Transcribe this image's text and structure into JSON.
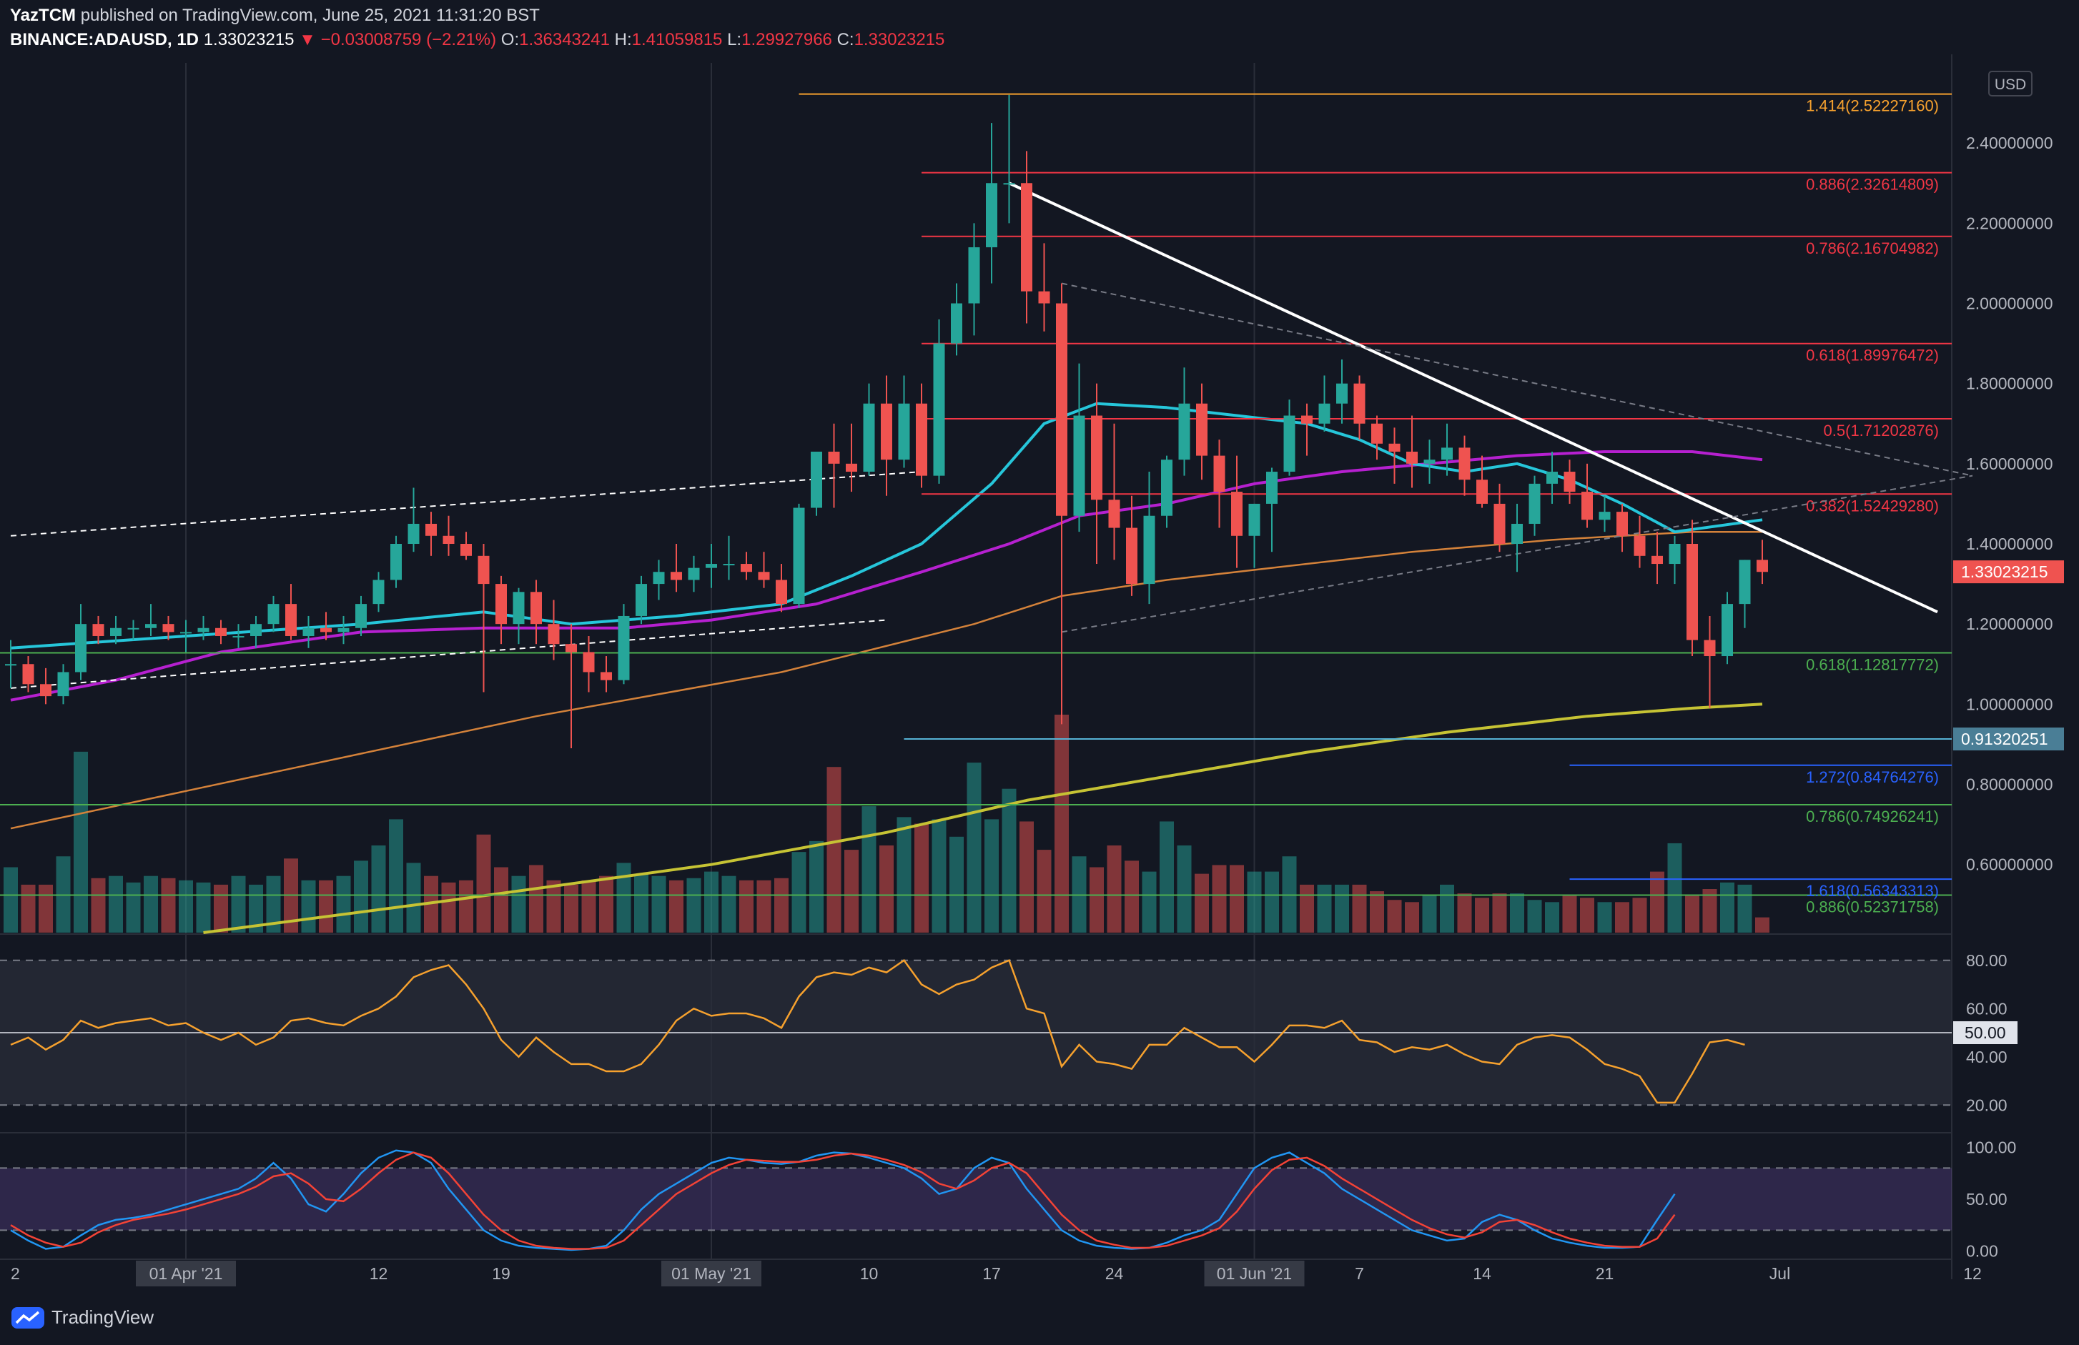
{
  "header": {
    "author": "YazTCM",
    "published_text": "published on TradingView.com, June 25, 2021 11:31:20 BST",
    "symbol": "BINANCE:ADAUSD, 1D",
    "last": "1.33023215",
    "change": "−0.03008759 (−2.21%)",
    "o_label": "O:",
    "o_value": "1.36343241",
    "h_label": "H:",
    "h_value": "1.41059815",
    "l_label": "L:",
    "l_value": "1.29927966",
    "c_label": "C:",
    "c_value": "1.33023215"
  },
  "footer": {
    "brand": "TradingView"
  },
  "colors": {
    "bg": "#131722",
    "up": "#26a69a",
    "down": "#ef5350",
    "ema20": "#26c6da",
    "ema50": "#b620d0",
    "ema100": "#d4823a",
    "ema200": "#c6c334",
    "fib_red": "#f23645",
    "fib_green": "#4caf50",
    "fib_blue": "#2962ff",
    "rsi": "#f6a12e",
    "stoch_k": "#2196f3",
    "stoch_d": "#f44336"
  },
  "chart_data": {
    "type": "candlestick",
    "title": "BINANCE:ADAUSD, 1D",
    "currency": "USD",
    "ylim": [
      0.43,
      2.6
    ],
    "y_ticks": [
      "2.40000000",
      "2.20000000",
      "2.00000000",
      "1.80000000",
      "1.60000000",
      "1.40000000",
      "1.20000000",
      "1.00000000",
      "0.80000000",
      "0.60000000"
    ],
    "x_ticks": [
      {
        "label": "2",
        "i": 0
      },
      {
        "label": "01 Apr '21",
        "i": 10,
        "boxed": true
      },
      {
        "label": "12",
        "i": 21
      },
      {
        "label": "19",
        "i": 28
      },
      {
        "label": "01 May '21",
        "i": 40,
        "boxed": true
      },
      {
        "label": "10",
        "i": 49
      },
      {
        "label": "17",
        "i": 56
      },
      {
        "label": "24",
        "i": 63
      },
      {
        "label": "01 Jun '21",
        "i": 71,
        "boxed": true
      },
      {
        "label": "7",
        "i": 77
      },
      {
        "label": "14",
        "i": 84
      },
      {
        "label": "21",
        "i": 91
      },
      {
        "label": "Jul",
        "i": 101
      },
      {
        "label": "12",
        "i": 112
      }
    ],
    "candles": [
      [
        1.1,
        1.16,
        1.04,
        1.1
      ],
      [
        1.1,
        1.12,
        1.03,
        1.05
      ],
      [
        1.05,
        1.09,
        1.0,
        1.02
      ],
      [
        1.02,
        1.1,
        1.0,
        1.08
      ],
      [
        1.08,
        1.25,
        1.06,
        1.2
      ],
      [
        1.2,
        1.22,
        1.15,
        1.17
      ],
      [
        1.17,
        1.22,
        1.15,
        1.19
      ],
      [
        1.19,
        1.21,
        1.16,
        1.19
      ],
      [
        1.19,
        1.25,
        1.17,
        1.2
      ],
      [
        1.2,
        1.22,
        1.16,
        1.18
      ],
      [
        1.18,
        1.21,
        1.13,
        1.18
      ],
      [
        1.18,
        1.22,
        1.16,
        1.19
      ],
      [
        1.19,
        1.21,
        1.15,
        1.17
      ],
      [
        1.17,
        1.2,
        1.14,
        1.17
      ],
      [
        1.17,
        1.22,
        1.14,
        1.2
      ],
      [
        1.2,
        1.27,
        1.18,
        1.25
      ],
      [
        1.25,
        1.3,
        1.16,
        1.17
      ],
      [
        1.17,
        1.22,
        1.14,
        1.19
      ],
      [
        1.19,
        1.23,
        1.16,
        1.18
      ],
      [
        1.18,
        1.22,
        1.15,
        1.19
      ],
      [
        1.19,
        1.27,
        1.17,
        1.25
      ],
      [
        1.25,
        1.33,
        1.23,
        1.31
      ],
      [
        1.31,
        1.42,
        1.29,
        1.4
      ],
      [
        1.4,
        1.54,
        1.38,
        1.45
      ],
      [
        1.45,
        1.48,
        1.37,
        1.42
      ],
      [
        1.42,
        1.47,
        1.37,
        1.4
      ],
      [
        1.4,
        1.43,
        1.36,
        1.37
      ],
      [
        1.37,
        1.4,
        1.03,
        1.3
      ],
      [
        1.3,
        1.32,
        1.15,
        1.2
      ],
      [
        1.2,
        1.29,
        1.15,
        1.28
      ],
      [
        1.28,
        1.31,
        1.15,
        1.2
      ],
      [
        1.2,
        1.26,
        1.11,
        1.15
      ],
      [
        1.15,
        1.2,
        0.89,
        1.13
      ],
      [
        1.13,
        1.17,
        1.03,
        1.08
      ],
      [
        1.08,
        1.12,
        1.03,
        1.06
      ],
      [
        1.06,
        1.25,
        1.05,
        1.22
      ],
      [
        1.22,
        1.32,
        1.2,
        1.3
      ],
      [
        1.3,
        1.36,
        1.26,
        1.33
      ],
      [
        1.33,
        1.4,
        1.28,
        1.31
      ],
      [
        1.31,
        1.37,
        1.28,
        1.34
      ],
      [
        1.34,
        1.4,
        1.29,
        1.35
      ],
      [
        1.35,
        1.42,
        1.31,
        1.35
      ],
      [
        1.35,
        1.38,
        1.31,
        1.33
      ],
      [
        1.33,
        1.38,
        1.29,
        1.31
      ],
      [
        1.31,
        1.35,
        1.23,
        1.25
      ],
      [
        1.25,
        1.5,
        1.24,
        1.49
      ],
      [
        1.49,
        1.63,
        1.47,
        1.63
      ],
      [
        1.63,
        1.7,
        1.49,
        1.6
      ],
      [
        1.6,
        1.7,
        1.53,
        1.58
      ],
      [
        1.58,
        1.8,
        1.57,
        1.75
      ],
      [
        1.75,
        1.82,
        1.52,
        1.61
      ],
      [
        1.61,
        1.82,
        1.59,
        1.75
      ],
      [
        1.75,
        1.8,
        1.54,
        1.57
      ],
      [
        1.57,
        1.96,
        1.55,
        1.9
      ],
      [
        1.9,
        2.05,
        1.87,
        2.0
      ],
      [
        2.0,
        2.2,
        1.92,
        2.14
      ],
      [
        2.14,
        2.45,
        2.05,
        2.3
      ],
      [
        2.3,
        2.52,
        2.2,
        2.3
      ],
      [
        2.3,
        2.38,
        1.95,
        2.03
      ],
      [
        2.03,
        2.15,
        1.93,
        2.0
      ],
      [
        2.0,
        2.05,
        0.95,
        1.47
      ],
      [
        1.47,
        1.85,
        1.43,
        1.72
      ],
      [
        1.72,
        1.8,
        1.35,
        1.51
      ],
      [
        1.51,
        1.7,
        1.36,
        1.44
      ],
      [
        1.44,
        1.52,
        1.27,
        1.3
      ],
      [
        1.3,
        1.58,
        1.25,
        1.47
      ],
      [
        1.47,
        1.62,
        1.44,
        1.61
      ],
      [
        1.61,
        1.84,
        1.57,
        1.75
      ],
      [
        1.75,
        1.8,
        1.56,
        1.62
      ],
      [
        1.62,
        1.66,
        1.44,
        1.53
      ],
      [
        1.53,
        1.62,
        1.34,
        1.42
      ],
      [
        1.42,
        1.5,
        1.34,
        1.5
      ],
      [
        1.5,
        1.59,
        1.38,
        1.58
      ],
      [
        1.58,
        1.76,
        1.57,
        1.72
      ],
      [
        1.72,
        1.75,
        1.62,
        1.7
      ],
      [
        1.7,
        1.82,
        1.68,
        1.75
      ],
      [
        1.75,
        1.86,
        1.7,
        1.8
      ],
      [
        1.8,
        1.82,
        1.66,
        1.7
      ],
      [
        1.7,
        1.72,
        1.61,
        1.65
      ],
      [
        1.65,
        1.69,
        1.55,
        1.63
      ],
      [
        1.63,
        1.72,
        1.54,
        1.6
      ],
      [
        1.6,
        1.66,
        1.55,
        1.61
      ],
      [
        1.61,
        1.7,
        1.57,
        1.64
      ],
      [
        1.64,
        1.67,
        1.52,
        1.56
      ],
      [
        1.56,
        1.62,
        1.49,
        1.5
      ],
      [
        1.5,
        1.55,
        1.38,
        1.4
      ],
      [
        1.4,
        1.5,
        1.33,
        1.45
      ],
      [
        1.45,
        1.57,
        1.42,
        1.55
      ],
      [
        1.55,
        1.63,
        1.5,
        1.58
      ],
      [
        1.58,
        1.61,
        1.5,
        1.53
      ],
      [
        1.53,
        1.6,
        1.44,
        1.46
      ],
      [
        1.46,
        1.52,
        1.43,
        1.48
      ],
      [
        1.48,
        1.5,
        1.38,
        1.42
      ],
      [
        1.42,
        1.47,
        1.34,
        1.37
      ],
      [
        1.37,
        1.43,
        1.3,
        1.35
      ],
      [
        1.35,
        1.42,
        1.3,
        1.4
      ],
      [
        1.4,
        1.46,
        1.12,
        1.16
      ],
      [
        1.16,
        1.22,
        0.99,
        1.12
      ],
      [
        1.12,
        1.28,
        1.1,
        1.25
      ],
      [
        1.25,
        1.36,
        1.19,
        1.36
      ],
      [
        1.36,
        1.41,
        1.3,
        1.33
      ]
    ],
    "volume": [
      0.3,
      0.22,
      0.22,
      0.35,
      0.83,
      0.25,
      0.26,
      0.23,
      0.26,
      0.25,
      0.24,
      0.23,
      0.22,
      0.26,
      0.22,
      0.26,
      0.34,
      0.24,
      0.24,
      0.26,
      0.33,
      0.4,
      0.52,
      0.32,
      0.26,
      0.23,
      0.24,
      0.45,
      0.3,
      0.26,
      0.31,
      0.24,
      0.22,
      0.24,
      0.26,
      0.32,
      0.27,
      0.26,
      0.24,
      0.25,
      0.28,
      0.26,
      0.24,
      0.24,
      0.25,
      0.37,
      0.42,
      0.76,
      0.38,
      0.58,
      0.4,
      0.53,
      0.5,
      0.52,
      0.44,
      0.78,
      0.52,
      0.66,
      0.51,
      0.38,
      1.0,
      0.35,
      0.3,
      0.4,
      0.33,
      0.28,
      0.51,
      0.4,
      0.27,
      0.31,
      0.31,
      0.28,
      0.28,
      0.35,
      0.22,
      0.22,
      0.22,
      0.22,
      0.19,
      0.15,
      0.14,
      0.17,
      0.22,
      0.18,
      0.16,
      0.18,
      0.18,
      0.15,
      0.14,
      0.17,
      0.16,
      0.14,
      0.14,
      0.16,
      0.28,
      0.41,
      0.17,
      0.2,
      0.23,
      0.22,
      0.07
    ],
    "ema20": [
      [
        0,
        1.14
      ],
      [
        10,
        1.17
      ],
      [
        20,
        1.2
      ],
      [
        27,
        1.23
      ],
      [
        32,
        1.2
      ],
      [
        38,
        1.22
      ],
      [
        44,
        1.25
      ],
      [
        48,
        1.32
      ],
      [
        52,
        1.4
      ],
      [
        56,
        1.55
      ],
      [
        59,
        1.7
      ],
      [
        62,
        1.75
      ],
      [
        66,
        1.74
      ],
      [
        70,
        1.72
      ],
      [
        74,
        1.7
      ],
      [
        77,
        1.66
      ],
      [
        80,
        1.6
      ],
      [
        83,
        1.58
      ],
      [
        86,
        1.6
      ],
      [
        89,
        1.56
      ],
      [
        92,
        1.5
      ],
      [
        95,
        1.43
      ],
      [
        100,
        1.46
      ]
    ],
    "ema50": [
      [
        0,
        1.01
      ],
      [
        6,
        1.06
      ],
      [
        12,
        1.13
      ],
      [
        20,
        1.18
      ],
      [
        27,
        1.19
      ],
      [
        35,
        1.19
      ],
      [
        40,
        1.21
      ],
      [
        46,
        1.25
      ],
      [
        52,
        1.33
      ],
      [
        57,
        1.4
      ],
      [
        61,
        1.47
      ],
      [
        66,
        1.5
      ],
      [
        71,
        1.55
      ],
      [
        76,
        1.58
      ],
      [
        81,
        1.6
      ],
      [
        86,
        1.62
      ],
      [
        91,
        1.63
      ],
      [
        96,
        1.63
      ],
      [
        100,
        1.61
      ]
    ],
    "ema100": [
      [
        0,
        0.69
      ],
      [
        15,
        0.83
      ],
      [
        30,
        0.97
      ],
      [
        44,
        1.08
      ],
      [
        55,
        1.2
      ],
      [
        60,
        1.27
      ],
      [
        66,
        1.31
      ],
      [
        72,
        1.34
      ],
      [
        80,
        1.38
      ],
      [
        88,
        1.41
      ],
      [
        96,
        1.43
      ],
      [
        100,
        1.43
      ]
    ],
    "ema200": [
      [
        11,
        0.43
      ],
      [
        25,
        0.51
      ],
      [
        40,
        0.6
      ],
      [
        50,
        0.68
      ],
      [
        58,
        0.76
      ],
      [
        66,
        0.82
      ],
      [
        74,
        0.88
      ],
      [
        82,
        0.93
      ],
      [
        90,
        0.97
      ],
      [
        96,
        0.99
      ],
      [
        100,
        1.0
      ]
    ],
    "fib_levels": [
      {
        "label": "1.414(2.52227160)",
        "y": 2.5222716,
        "color": "#f6a12e",
        "i0": 45
      },
      {
        "label": "0.886(2.32614809)",
        "y": 2.32614809,
        "color": "#f23645",
        "i0": 52
      },
      {
        "label": "0.786(2.16704982)",
        "y": 2.16704982,
        "color": "#f23645",
        "i0": 52
      },
      {
        "label": "0.618(1.89976472)",
        "y": 1.89976472,
        "color": "#f23645",
        "i0": 52
      },
      {
        "label": "0.5(1.71202876)",
        "y": 1.71202876,
        "color": "#f23645",
        "i0": 52
      },
      {
        "label": "0.382(1.52429280)",
        "y": 1.5242928,
        "color": "#f23645",
        "i0": 52
      },
      {
        "label": "0.618(1.12817772)",
        "y": 1.12817772,
        "color": "#4caf50",
        "i0": -1
      },
      {
        "label": "0.786(0.74926241)",
        "y": 0.74926241,
        "color": "#4caf50",
        "i0": -1
      },
      {
        "label": "0.886(0.52371758)",
        "y": 0.52371758,
        "color": "#4caf50",
        "i0": -1
      },
      {
        "label": "1.272(0.84764276)",
        "y": 0.84764276,
        "color": "#2962ff",
        "i0": 89
      },
      {
        "label": "1.618(0.56343313)",
        "y": 0.56343313,
        "color": "#2962ff",
        "i0": 89
      }
    ],
    "support_line": {
      "label": "0.91320251",
      "y": 0.91320251,
      "i0": 51
    },
    "trendlines": [
      {
        "kind": "solid",
        "color": "#ffffff",
        "p": [
          [
            57,
            2.3
          ],
          [
            110,
            1.23
          ]
        ]
      },
      {
        "kind": "dashed",
        "color": "#ffffff",
        "p": [
          [
            0,
            1.42
          ],
          [
            52,
            1.58
          ]
        ]
      },
      {
        "kind": "dashed",
        "color": "#ffffff",
        "p": [
          [
            0,
            1.04
          ],
          [
            50,
            1.21
          ]
        ]
      },
      {
        "kind": "dashed",
        "color": "#787b86",
        "p": [
          [
            60,
            2.05
          ],
          [
            112,
            1.57
          ]
        ]
      },
      {
        "kind": "dashed",
        "color": "#787b86",
        "p": [
          [
            60,
            1.18
          ],
          [
            112,
            1.57
          ]
        ]
      }
    ],
    "price_tag": {
      "label": "1.33023215",
      "y": 1.33023215
    },
    "rsi": {
      "ylim": [
        10,
        90
      ],
      "ticks": [
        "80.00",
        "60.00",
        "50.00",
        "40.00",
        "20.00"
      ],
      "current_label": "50.00",
      "values": [
        45,
        48,
        43,
        47,
        55,
        52,
        54,
        55,
        56,
        53,
        54,
        50,
        47,
        50,
        45,
        48,
        55,
        56,
        54,
        53,
        57,
        60,
        65,
        73,
        76,
        78,
        70,
        60,
        47,
        40,
        48,
        42,
        37,
        37,
        34,
        34,
        37,
        45,
        55,
        60,
        57,
        58,
        58,
        56,
        52,
        65,
        73,
        75,
        74,
        77,
        75,
        80,
        70,
        66,
        70,
        72,
        77,
        80,
        60,
        58,
        36,
        45,
        38,
        37,
        35,
        45,
        45,
        52,
        48,
        44,
        44,
        38,
        45,
        53,
        53,
        52,
        55,
        47,
        46,
        42,
        44,
        43,
        45,
        41,
        38,
        37,
        45,
        48,
        49,
        48,
        43,
        37,
        35,
        32,
        21,
        21,
        33,
        46,
        47,
        45
      ]
    },
    "stoch": {
      "ylim": [
        -8,
        112
      ],
      "ticks": [
        "100.00",
        "50.00",
        "0.00"
      ],
      "k": [
        20,
        10,
        2,
        4,
        15,
        25,
        30,
        32,
        35,
        40,
        45,
        50,
        55,
        60,
        70,
        85,
        70,
        45,
        38,
        55,
        75,
        90,
        97,
        95,
        85,
        60,
        40,
        20,
        10,
        5,
        3,
        2,
        1,
        2,
        5,
        20,
        40,
        55,
        65,
        75,
        85,
        90,
        88,
        85,
        84,
        86,
        92,
        95,
        94,
        90,
        85,
        80,
        70,
        55,
        60,
        80,
        90,
        85,
        60,
        40,
        20,
        10,
        5,
        3,
        2,
        3,
        8,
        15,
        20,
        30,
        55,
        80,
        90,
        95,
        85,
        75,
        60,
        50,
        40,
        30,
        20,
        15,
        10,
        12,
        28,
        35,
        30,
        20,
        12,
        8,
        5,
        3,
        3,
        4,
        30,
        55
      ],
      "d": [
        25,
        15,
        8,
        4,
        8,
        18,
        25,
        30,
        33,
        36,
        40,
        45,
        50,
        55,
        62,
        72,
        75,
        65,
        50,
        48,
        60,
        75,
        88,
        95,
        90,
        75,
        55,
        35,
        20,
        10,
        5,
        3,
        2,
        2,
        3,
        10,
        25,
        40,
        55,
        65,
        75,
        83,
        88,
        87,
        86,
        86,
        88,
        92,
        94,
        92,
        88,
        83,
        76,
        65,
        60,
        68,
        80,
        85,
        75,
        55,
        35,
        20,
        10,
        6,
        3,
        3,
        5,
        10,
        15,
        22,
        38,
        60,
        78,
        88,
        90,
        82,
        70,
        60,
        50,
        40,
        30,
        22,
        16,
        13,
        18,
        28,
        30,
        25,
        18,
        12,
        8,
        5,
        4,
        4,
        12,
        35
      ]
    }
  }
}
